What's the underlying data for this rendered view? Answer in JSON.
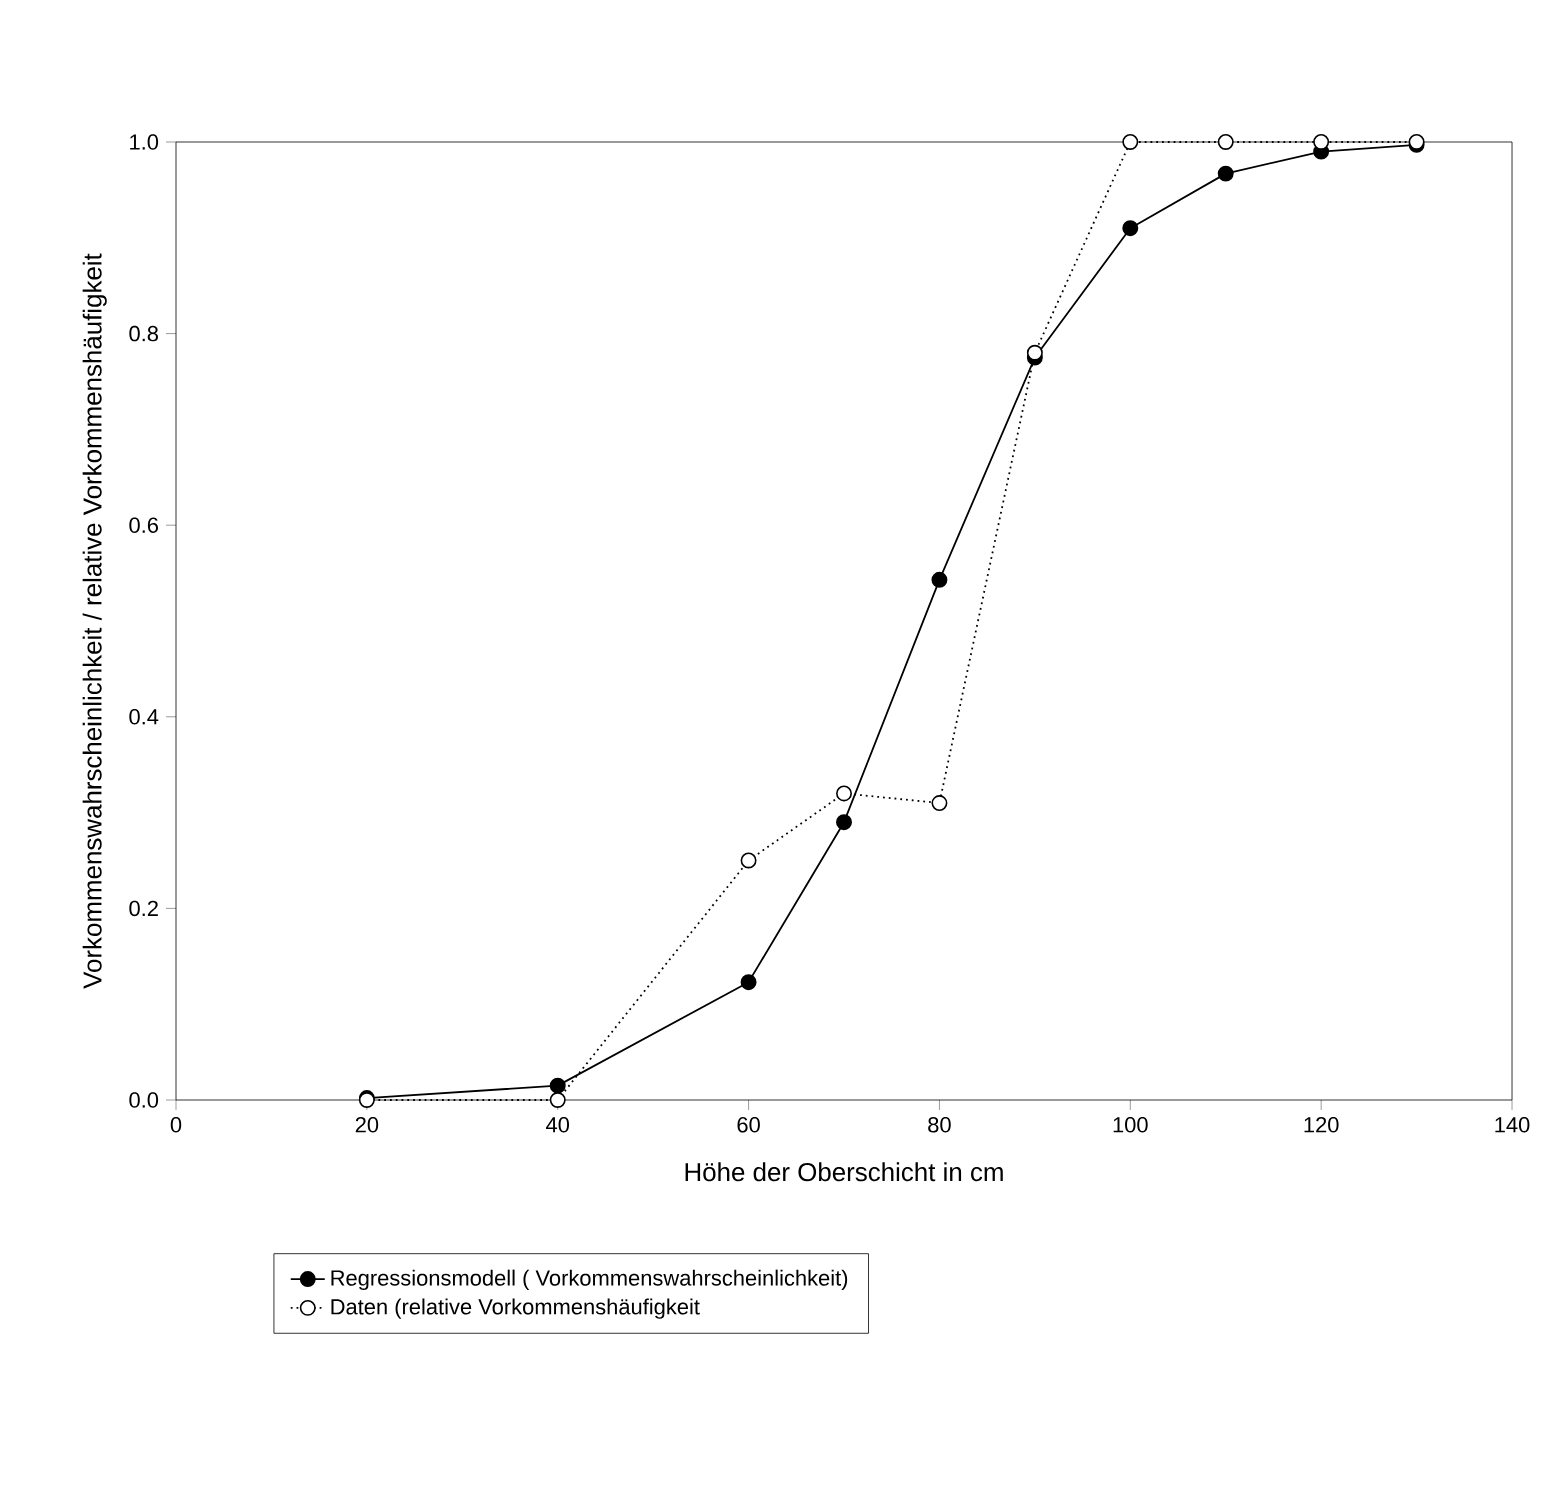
{
  "chart_data": {
    "type": "line",
    "xlabel": "Höhe der Oberschicht in cm",
    "ylabel": "Vorkommenswahrscheinlichkeit / relative Vorkommenshäufigkeit",
    "series": [
      {
        "name": "Regressionsmodell ( Vorkommenswahrscheinlichkeit)",
        "color": "#000000",
        "marker": "circle",
        "line_style": "solid",
        "x": [
          20,
          40,
          60,
          70,
          80,
          90,
          100,
          110,
          120,
          130
        ],
        "values": [
          0.002,
          0.015,
          0.123,
          0.29,
          0.543,
          0.775,
          0.91,
          0.967,
          0.99,
          0.997
        ]
      },
      {
        "name": "Daten (relative Vorkommenshäufigkeit",
        "color": "#000000",
        "marker": "circle",
        "line_style": "dotted",
        "x": [
          20,
          40,
          60,
          70,
          80,
          90,
          100,
          110,
          120,
          130
        ],
        "values": [
          0,
          0,
          0.25,
          0.32,
          0.31,
          0.78,
          1.0,
          1.0,
          1.0,
          1.0
        ]
      }
    ],
    "xlim": [
      0,
      140
    ],
    "ylim": [
      0,
      1.0
    ],
    "xticks": [
      0,
      20,
      40,
      60,
      80,
      100,
      120,
      140
    ],
    "yticks": [
      {
        "value": 0,
        "label": "0.0"
      },
      {
        "value": 0.2,
        "label": "0.2"
      },
      {
        "value": 0.4,
        "label": "0.4"
      },
      {
        "value": 0.6,
        "label": "0.6"
      },
      {
        "value": 0.8,
        "label": "0.8"
      },
      {
        "value": 1.0,
        "label": "1.0"
      }
    ],
    "grid": false,
    "legend": "bottom"
  }
}
